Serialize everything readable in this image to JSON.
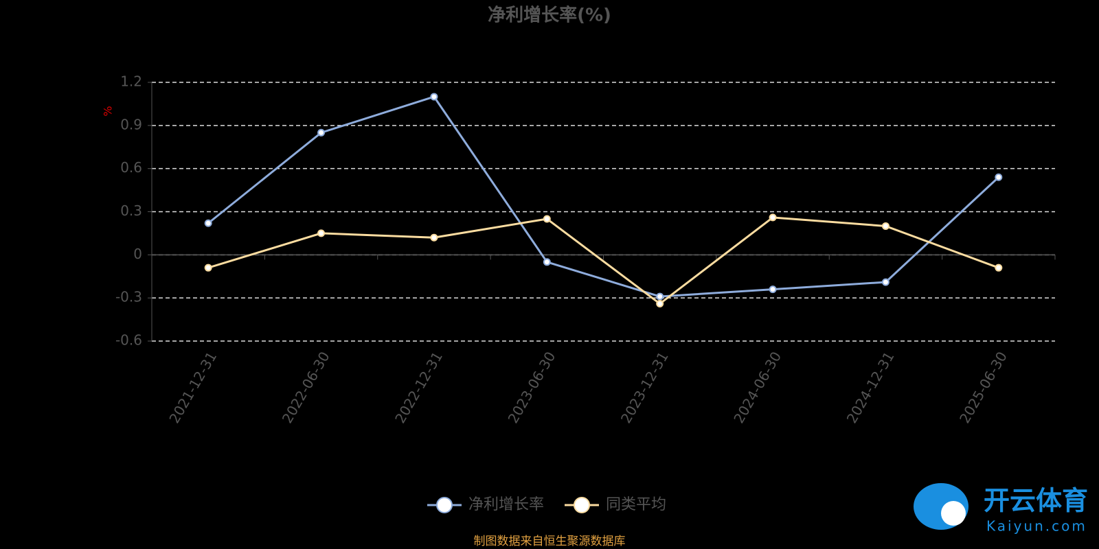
{
  "chart_data": {
    "type": "line",
    "title": "净利增长率(%)",
    "y_label": "%",
    "categories": [
      "2021-12-31",
      "2022-06-30",
      "2022-12-31",
      "2023-06-30",
      "2023-12-31",
      "2024-06-30",
      "2024-12-31",
      "2025-06-30"
    ],
    "series": [
      {
        "name": "净利增长率",
        "color": "#8eacdc",
        "values": [
          0.22,
          0.85,
          1.1,
          -0.05,
          -0.29,
          -0.24,
          -0.19,
          0.54
        ]
      },
      {
        "name": "同类平均",
        "color": "#fbdca0",
        "values": [
          -0.09,
          0.15,
          0.12,
          0.25,
          -0.34,
          0.26,
          0.2,
          -0.09
        ]
      }
    ],
    "ylim": [
      -0.6,
      1.2
    ],
    "yticks": [
      -0.6,
      -0.3,
      0,
      0.3,
      0.6,
      0.9,
      1.2
    ],
    "grid": true,
    "legend": "bottom",
    "source": "制图数据来自恒生聚源数据库",
    "watermark": {
      "name": "开云体育",
      "site": "Kaiyun.com"
    }
  }
}
